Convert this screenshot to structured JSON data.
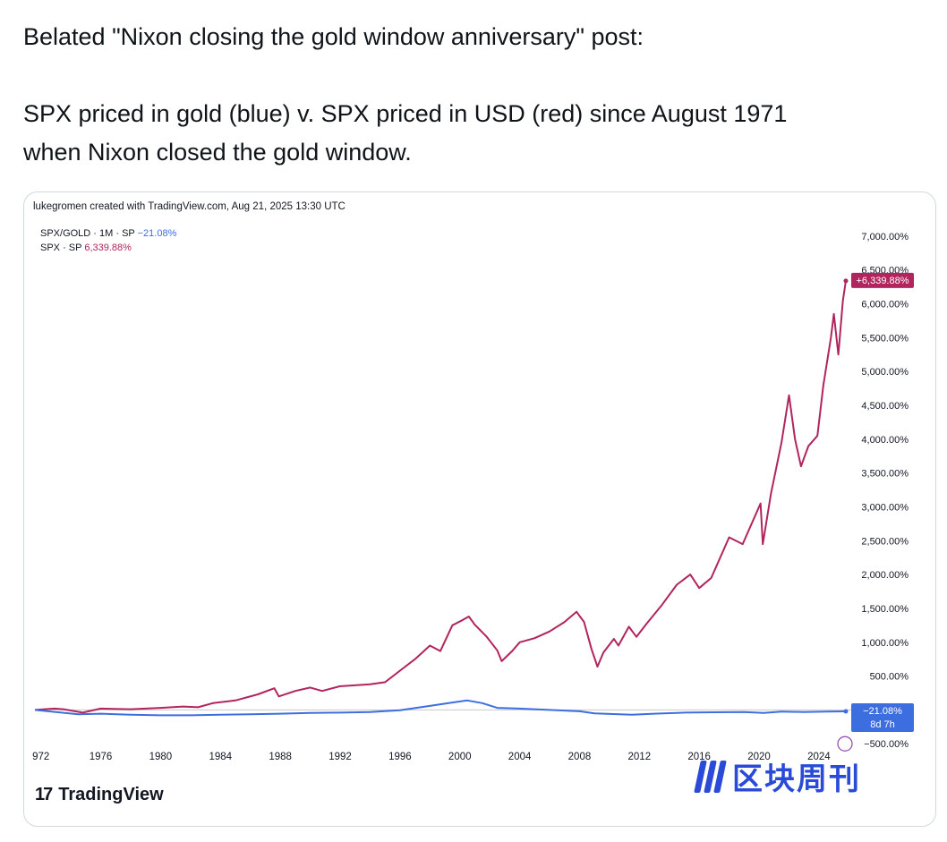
{
  "post": {
    "line1": "Belated \"Nixon closing the gold window anniversary\" post:",
    "line2": "SPX priced in gold (blue) v. SPX priced in USD (red) since August 1971",
    "line3": "when Nixon closed the gold window."
  },
  "card": {
    "credit": "lukegromen created with TradingView.com, Aug 21, 2025 13:30 UTC",
    "legend": [
      {
        "label": "SPX/GOLD · 1M · SP",
        "value": "−21.08%"
      },
      {
        "label": "SPX · SP",
        "value": "6,339.88%"
      }
    ],
    "brand": "TradingView",
    "watermark": "区块周刊"
  },
  "colors": {
    "red_series": "#b1245d",
    "blue_series": "#3d6ee0",
    "watermark": "#2a4bd8",
    "zero_line": "#c8c8c8"
  },
  "chart_data": {
    "type": "line",
    "title": "",
    "xlabel": "",
    "ylabel": "",
    "x_ticks": [
      "972",
      "1976",
      "1980",
      "1984",
      "1988",
      "1992",
      "1996",
      "2000",
      "2004",
      "2008",
      "2012",
      "2016",
      "2020",
      "2024"
    ],
    "y_ticks": [
      "7,000.00%",
      "6,500.00%",
      "6,000.00%",
      "5,500.00%",
      "5,000.00%",
      "4,500.00%",
      "4,000.00%",
      "3,500.00%",
      "3,000.00%",
      "2,500.00%",
      "2,000.00%",
      "1,500.00%",
      "1,000.00%",
      "500.00%",
      "−500.00%"
    ],
    "ylim": [
      -550,
      7250
    ],
    "xlim": [
      1971.6,
      2025.8
    ],
    "legend_position": "top-left",
    "grid": false,
    "series": [
      {
        "name": "SPX · SP",
        "color": "#b1245d",
        "last_label": "+6,339.88%",
        "points": [
          [
            1971.6,
            0
          ],
          [
            1972.9,
            20
          ],
          [
            1973.5,
            10
          ],
          [
            1974.8,
            -40
          ],
          [
            1976.0,
            20
          ],
          [
            1978.0,
            10
          ],
          [
            1980.0,
            30
          ],
          [
            1981.5,
            50
          ],
          [
            1982.5,
            40
          ],
          [
            1983.5,
            100
          ],
          [
            1985.0,
            140
          ],
          [
            1986.5,
            230
          ],
          [
            1987.6,
            320
          ],
          [
            1987.9,
            200
          ],
          [
            1989.0,
            280
          ],
          [
            1990.0,
            330
          ],
          [
            1990.8,
            280
          ],
          [
            1992.0,
            350
          ],
          [
            1994.0,
            380
          ],
          [
            1995.0,
            410
          ],
          [
            1996.0,
            580
          ],
          [
            1997.0,
            750
          ],
          [
            1998.0,
            950
          ],
          [
            1998.7,
            870
          ],
          [
            1999.5,
            1250
          ],
          [
            2000.2,
            1330
          ],
          [
            2000.6,
            1380
          ],
          [
            2001.0,
            1260
          ],
          [
            2001.8,
            1080
          ],
          [
            2002.5,
            880
          ],
          [
            2002.8,
            720
          ],
          [
            2003.5,
            870
          ],
          [
            2004.0,
            1000
          ],
          [
            2005.0,
            1060
          ],
          [
            2006.0,
            1160
          ],
          [
            2007.0,
            1300
          ],
          [
            2007.8,
            1450
          ],
          [
            2008.3,
            1300
          ],
          [
            2008.8,
            900
          ],
          [
            2009.2,
            640
          ],
          [
            2009.6,
            850
          ],
          [
            2010.3,
            1050
          ],
          [
            2010.6,
            950
          ],
          [
            2011.3,
            1230
          ],
          [
            2011.8,
            1080
          ],
          [
            2012.5,
            1280
          ],
          [
            2013.5,
            1550
          ],
          [
            2014.5,
            1850
          ],
          [
            2015.4,
            2000
          ],
          [
            2016.0,
            1800
          ],
          [
            2016.8,
            1950
          ],
          [
            2018.0,
            2550
          ],
          [
            2018.9,
            2450
          ],
          [
            2019.5,
            2750
          ],
          [
            2020.1,
            3050
          ],
          [
            2020.25,
            2450
          ],
          [
            2020.8,
            3200
          ],
          [
            2021.5,
            3950
          ],
          [
            2022.0,
            4650
          ],
          [
            2022.4,
            4000
          ],
          [
            2022.8,
            3600
          ],
          [
            2023.3,
            3900
          ],
          [
            2023.9,
            4050
          ],
          [
            2024.3,
            4800
          ],
          [
            2024.8,
            5500
          ],
          [
            2025.0,
            5850
          ],
          [
            2025.3,
            5250
          ],
          [
            2025.6,
            6050
          ],
          [
            2025.8,
            6340
          ]
        ]
      },
      {
        "name": "SPX/GOLD · 1M · SP",
        "color": "#3d6ee0",
        "last_label": "−21.08%",
        "last_sublabel": "8d 7h",
        "points": [
          [
            1971.6,
            0
          ],
          [
            1973.0,
            -30
          ],
          [
            1974.5,
            -65
          ],
          [
            1976.0,
            -55
          ],
          [
            1978.0,
            -70
          ],
          [
            1980.0,
            -80
          ],
          [
            1982.0,
            -80
          ],
          [
            1984.0,
            -70
          ],
          [
            1986.0,
            -65
          ],
          [
            1988.0,
            -55
          ],
          [
            1990.0,
            -45
          ],
          [
            1992.0,
            -40
          ],
          [
            1994.0,
            -30
          ],
          [
            1996.0,
            -5
          ],
          [
            1998.0,
            60
          ],
          [
            1999.5,
            110
          ],
          [
            2000.5,
            140
          ],
          [
            2001.5,
            100
          ],
          [
            2002.5,
            30
          ],
          [
            2004.0,
            20
          ],
          [
            2006.0,
            0
          ],
          [
            2008.0,
            -20
          ],
          [
            2009.0,
            -50
          ],
          [
            2011.5,
            -70
          ],
          [
            2013.0,
            -55
          ],
          [
            2015.0,
            -40
          ],
          [
            2017.0,
            -35
          ],
          [
            2019.0,
            -30
          ],
          [
            2020.3,
            -45
          ],
          [
            2021.5,
            -25
          ],
          [
            2023.0,
            -30
          ],
          [
            2024.5,
            -25
          ],
          [
            2025.8,
            -21
          ]
        ]
      }
    ]
  }
}
